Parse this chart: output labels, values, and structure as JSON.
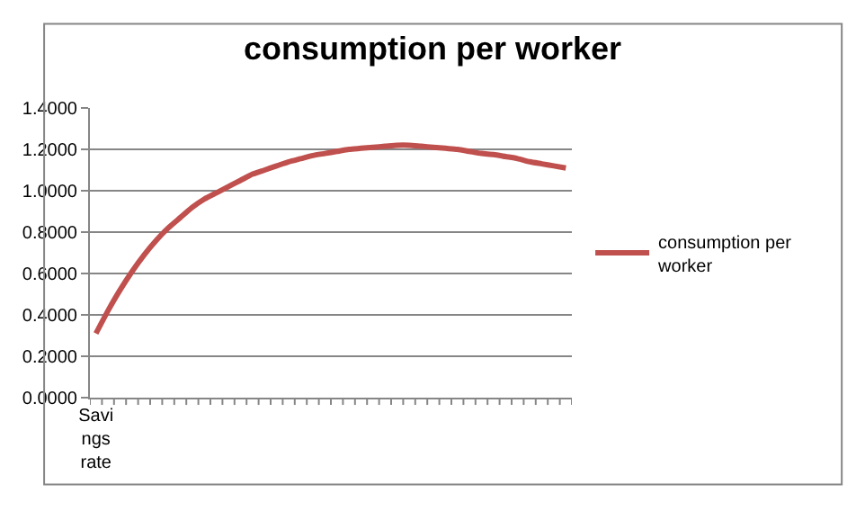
{
  "chart_data": {
    "type": "line",
    "title": "consumption per worker",
    "categories": [
      "Savings rate",
      null,
      null,
      null,
      null,
      null,
      null,
      null,
      null,
      null,
      null,
      null,
      null,
      null,
      null,
      null,
      null,
      null,
      null,
      null,
      null,
      null,
      null,
      null,
      null,
      null,
      null,
      null,
      null,
      null,
      null,
      null,
      null,
      null,
      null,
      null,
      null,
      null,
      null,
      null
    ],
    "series": [
      {
        "name": "consumption per worker",
        "color": "#c0504d",
        "values": [
          0.31,
          0.42,
          0.52,
          0.61,
          0.69,
          0.76,
          0.82,
          0.87,
          0.92,
          0.96,
          0.99,
          1.02,
          1.05,
          1.08,
          1.1,
          1.12,
          1.14,
          1.155,
          1.17,
          1.18,
          1.19,
          1.2,
          1.205,
          1.21,
          1.215,
          1.22,
          1.22,
          1.215,
          1.21,
          1.205,
          1.2,
          1.19,
          1.18,
          1.175,
          1.165,
          1.155,
          1.14,
          1.13,
          1.12,
          1.11
        ]
      }
    ],
    "ylim": [
      0,
      1.4
    ],
    "yticks": [
      {
        "value": 0,
        "label": "0.0000"
      },
      {
        "value": 0.2,
        "label": "0.2000"
      },
      {
        "value": 0.4,
        "label": "0.4000"
      },
      {
        "value": 0.6,
        "label": "0.6000"
      },
      {
        "value": 0.8,
        "label": "0.8000"
      },
      {
        "value": 1.0,
        "label": "1.0000"
      },
      {
        "value": 1.2,
        "label": "1.2000"
      },
      {
        "value": 1.4,
        "label": "1.4000"
      }
    ],
    "grid": "y",
    "legend": "right",
    "marker": "none",
    "line_style": "solid"
  }
}
